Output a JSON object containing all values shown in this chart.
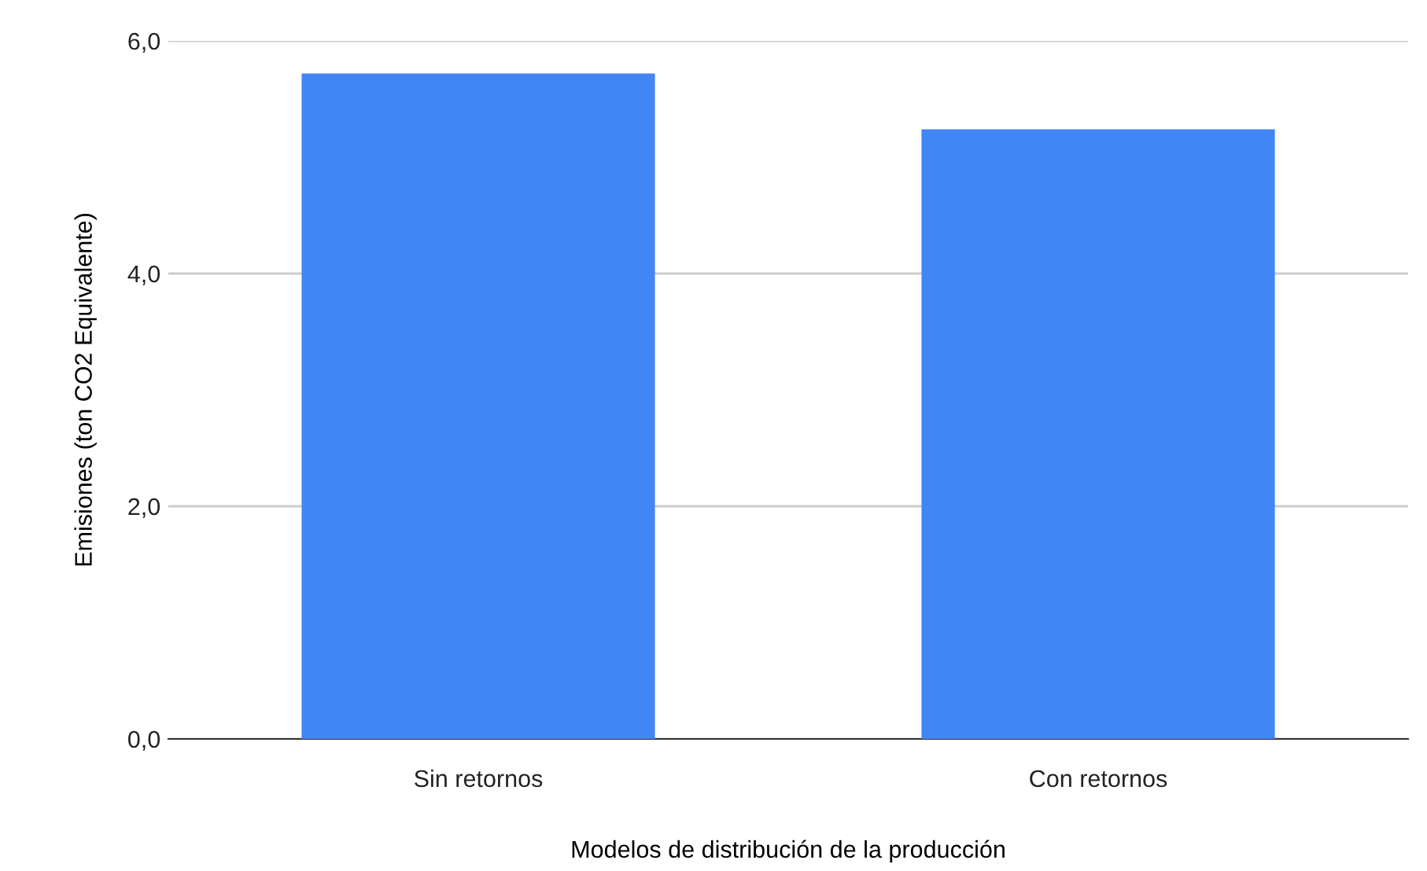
{
  "chart_data": {
    "type": "bar",
    "xlabel": "Modelos de distribución de la producción",
    "ylabel": "Emisiones (ton CO2 Equivalente)",
    "categories": [
      "Sin retornos",
      "Con retornos"
    ],
    "values": [
      5.72,
      5.24
    ],
    "color": "#4285f4",
    "ylim": [
      0,
      6
    ],
    "yticks": [
      {
        "value": 0,
        "label": "0,0"
      },
      {
        "value": 2,
        "label": "2,0"
      },
      {
        "value": 4,
        "label": "4,0"
      },
      {
        "value": 6,
        "label": "6,0"
      }
    ],
    "grid": "y",
    "legend": false
  }
}
